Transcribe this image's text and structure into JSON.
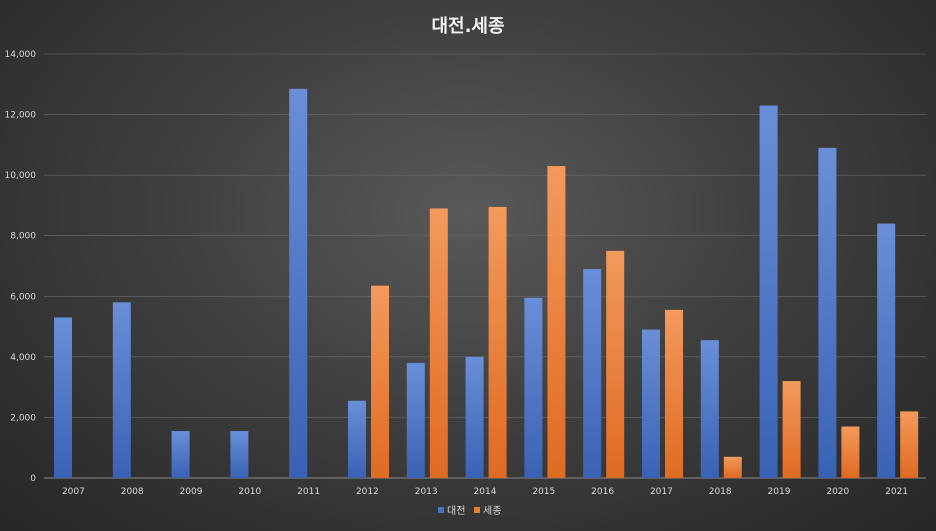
{
  "chart_data": {
    "type": "bar",
    "title": "대전.세종",
    "xlabel": "",
    "ylabel": "",
    "categories": [
      "2007",
      "2008",
      "2009",
      "2010",
      "2011",
      "2012",
      "2013",
      "2014",
      "2015",
      "2016",
      "2017",
      "2018",
      "2019",
      "2020",
      "2021"
    ],
    "series": [
      {
        "name": "대전",
        "color": "#4472c4",
        "values": [
          5300,
          5800,
          1550,
          1550,
          12850,
          2550,
          3800,
          4000,
          5950,
          6900,
          4900,
          4550,
          12300,
          10900,
          8400
        ]
      },
      {
        "name": "세종",
        "color": "#ed7d31",
        "values": [
          null,
          null,
          null,
          null,
          null,
          6350,
          8900,
          8950,
          10300,
          7500,
          5550,
          700,
          3200,
          1700,
          2200
        ]
      }
    ],
    "ylim": [
      0,
      14000
    ],
    "yticks": [
      0,
      2000,
      4000,
      6000,
      8000,
      10000,
      12000,
      14000
    ],
    "ytick_labels": [
      "0",
      "2,000",
      "4,000",
      "6,000",
      "8,000",
      "10,000",
      "12,000",
      "14,000"
    ],
    "grid": true,
    "legend_position": "bottom"
  }
}
